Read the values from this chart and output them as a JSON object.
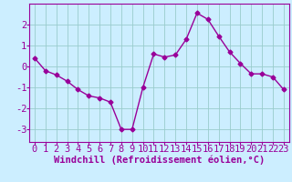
{
  "x": [
    0,
    1,
    2,
    3,
    4,
    5,
    6,
    7,
    8,
    9,
    10,
    11,
    12,
    13,
    14,
    15,
    16,
    17,
    18,
    19,
    20,
    21,
    22,
    23
  ],
  "y": [
    0.4,
    -0.2,
    -0.4,
    -0.7,
    -1.1,
    -1.4,
    -1.5,
    -1.7,
    -3.0,
    -3.0,
    -1.0,
    0.6,
    0.45,
    0.55,
    1.3,
    2.55,
    2.25,
    1.45,
    0.7,
    0.15,
    -0.35,
    -0.35,
    -0.5,
    -1.1
  ],
  "line_color": "#990099",
  "marker": "D",
  "marker_size": 2.5,
  "bg_color": "#cceeff",
  "grid_color": "#99cccc",
  "xlabel": "Windchill (Refroidissement éolien,°C)",
  "xlim": [
    -0.5,
    23.5
  ],
  "ylim": [
    -3.6,
    3.0
  ],
  "yticks": [
    -3,
    -2,
    -1,
    0,
    1,
    2
  ],
  "xticks": [
    0,
    1,
    2,
    3,
    4,
    5,
    6,
    7,
    8,
    9,
    10,
    11,
    12,
    13,
    14,
    15,
    16,
    17,
    18,
    19,
    20,
    21,
    22,
    23
  ],
  "tick_fontsize": 7.5,
  "xlabel_fontsize": 7.5
}
